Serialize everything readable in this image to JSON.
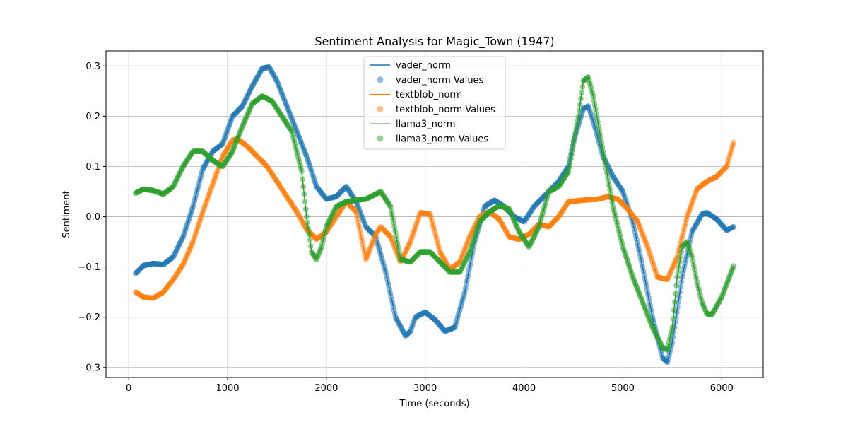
{
  "chart_data": {
    "type": "line",
    "title": "Sentiment Analysis for Magic_Town (1947)",
    "xlabel": "Time (seconds)",
    "ylabel": "Sentiment",
    "xlim": [
      -230,
      6420
    ],
    "ylim": [
      -0.32,
      0.33
    ],
    "xticks": [
      0,
      1000,
      2000,
      3000,
      4000,
      5000,
      6000
    ],
    "xtick_labels": [
      "0",
      "1000",
      "2000",
      "3000",
      "4000",
      "5000",
      "6000"
    ],
    "yticks": [
      -0.3,
      -0.2,
      -0.1,
      0.0,
      0.1,
      0.2,
      0.3
    ],
    "ytick_labels": [
      "−0.3",
      "−0.2",
      "−0.1",
      "0.0",
      "0.1",
      "0.2",
      "0.3"
    ],
    "grid": true,
    "legend_position": "top-center",
    "legend_entries": [
      {
        "label": "vader_norm",
        "kind": "line",
        "color": "#1f77b4"
      },
      {
        "label": "vader_norm Values",
        "kind": "marker",
        "color": "#1f77b4"
      },
      {
        "label": "textblob_norm",
        "kind": "line",
        "color": "#ff7f0e"
      },
      {
        "label": "textblob_norm Values",
        "kind": "marker",
        "color": "#ff7f0e"
      },
      {
        "label": "llama3_norm",
        "kind": "line",
        "color": "#2ca02c"
      },
      {
        "label": "llama3_norm Values",
        "kind": "marker",
        "color": "#2ca02c"
      }
    ],
    "series": [
      {
        "name": "vader_norm",
        "color": "#1f77b4",
        "points": [
          [
            70,
            -0.113
          ],
          [
            150,
            -0.097
          ],
          [
            250,
            -0.093
          ],
          [
            350,
            -0.095
          ],
          [
            450,
            -0.08
          ],
          [
            550,
            -0.04
          ],
          [
            650,
            0.02
          ],
          [
            750,
            0.095
          ],
          [
            850,
            0.13
          ],
          [
            950,
            0.145
          ],
          [
            1050,
            0.2
          ],
          [
            1150,
            0.22
          ],
          [
            1250,
            0.26
          ],
          [
            1350,
            0.295
          ],
          [
            1420,
            0.298
          ],
          [
            1500,
            0.27
          ],
          [
            1600,
            0.22
          ],
          [
            1700,
            0.17
          ],
          [
            1800,
            0.12
          ],
          [
            1900,
            0.06
          ],
          [
            2000,
            0.035
          ],
          [
            2100,
            0.04
          ],
          [
            2200,
            0.06
          ],
          [
            2300,
            0.03
          ],
          [
            2400,
            -0.02
          ],
          [
            2500,
            -0.04
          ],
          [
            2600,
            -0.11
          ],
          [
            2700,
            -0.2
          ],
          [
            2800,
            -0.237
          ],
          [
            2850,
            -0.228
          ],
          [
            2900,
            -0.2
          ],
          [
            3000,
            -0.19
          ],
          [
            3100,
            -0.205
          ],
          [
            3200,
            -0.228
          ],
          [
            3300,
            -0.22
          ],
          [
            3400,
            -0.15
          ],
          [
            3500,
            -0.05
          ],
          [
            3600,
            0.02
          ],
          [
            3700,
            0.033
          ],
          [
            3800,
            0.02
          ],
          [
            3900,
            0.0
          ],
          [
            4000,
            -0.01
          ],
          [
            4100,
            0.02
          ],
          [
            4200,
            0.04
          ],
          [
            4300,
            0.06
          ],
          [
            4350,
            0.07
          ],
          [
            4450,
            0.1
          ],
          [
            4500,
            0.15
          ],
          [
            4600,
            0.215
          ],
          [
            4650,
            0.22
          ],
          [
            4700,
            0.19
          ],
          [
            4800,
            0.12
          ],
          [
            4900,
            0.08
          ],
          [
            5000,
            0.05
          ],
          [
            5100,
            -0.01
          ],
          [
            5200,
            -0.1
          ],
          [
            5300,
            -0.2
          ],
          [
            5400,
            -0.28
          ],
          [
            5450,
            -0.29
          ],
          [
            5500,
            -0.25
          ],
          [
            5600,
            -0.12
          ],
          [
            5700,
            -0.03
          ],
          [
            5800,
            0.005
          ],
          [
            5850,
            0.008
          ],
          [
            5950,
            -0.005
          ],
          [
            6050,
            -0.027
          ],
          [
            6120,
            -0.02
          ]
        ]
      },
      {
        "name": "textblob_norm",
        "color": "#ff7f0e",
        "points": [
          [
            70,
            -0.15
          ],
          [
            150,
            -0.16
          ],
          [
            250,
            -0.162
          ],
          [
            350,
            -0.15
          ],
          [
            450,
            -0.125
          ],
          [
            550,
            -0.095
          ],
          [
            650,
            -0.05
          ],
          [
            750,
            0.01
          ],
          [
            850,
            0.065
          ],
          [
            950,
            0.12
          ],
          [
            1050,
            0.152
          ],
          [
            1100,
            0.155
          ],
          [
            1200,
            0.14
          ],
          [
            1300,
            0.12
          ],
          [
            1400,
            0.1
          ],
          [
            1500,
            0.07
          ],
          [
            1600,
            0.04
          ],
          [
            1700,
            0.01
          ],
          [
            1800,
            -0.025
          ],
          [
            1900,
            -0.045
          ],
          [
            2000,
            -0.03
          ],
          [
            2100,
            0.0
          ],
          [
            2200,
            0.03
          ],
          [
            2300,
            0.01
          ],
          [
            2400,
            -0.085
          ],
          [
            2500,
            -0.035
          ],
          [
            2550,
            -0.02
          ],
          [
            2650,
            -0.04
          ],
          [
            2750,
            -0.09
          ],
          [
            2850,
            -0.05
          ],
          [
            2950,
            0.008
          ],
          [
            3050,
            0.005
          ],
          [
            3150,
            -0.07
          ],
          [
            3250,
            -0.105
          ],
          [
            3350,
            -0.09
          ],
          [
            3450,
            -0.04
          ],
          [
            3550,
            0.0
          ],
          [
            3650,
            0.01
          ],
          [
            3750,
            -0.005
          ],
          [
            3850,
            -0.04
          ],
          [
            3950,
            -0.045
          ],
          [
            4050,
            -0.035
          ],
          [
            4150,
            -0.015
          ],
          [
            4250,
            -0.02
          ],
          [
            4350,
            0.0
          ],
          [
            4450,
            0.03
          ],
          [
            4600,
            0.033
          ],
          [
            4750,
            0.035
          ],
          [
            4850,
            0.04
          ],
          [
            4950,
            0.035
          ],
          [
            5050,
            0.015
          ],
          [
            5150,
            -0.01
          ],
          [
            5250,
            -0.06
          ],
          [
            5350,
            -0.12
          ],
          [
            5450,
            -0.125
          ],
          [
            5550,
            -0.08
          ],
          [
            5650,
            0.0
          ],
          [
            5750,
            0.055
          ],
          [
            5850,
            0.07
          ],
          [
            5950,
            0.08
          ],
          [
            6050,
            0.1
          ],
          [
            6120,
            0.148
          ]
        ]
      },
      {
        "name": "llama3_norm",
        "color": "#2ca02c",
        "points": [
          [
            70,
            0.047
          ],
          [
            150,
            0.055
          ],
          [
            250,
            0.052
          ],
          [
            350,
            0.045
          ],
          [
            450,
            0.06
          ],
          [
            550,
            0.1
          ],
          [
            650,
            0.13
          ],
          [
            750,
            0.13
          ],
          [
            850,
            0.112
          ],
          [
            950,
            0.1
          ],
          [
            1050,
            0.13
          ],
          [
            1150,
            0.18
          ],
          [
            1250,
            0.225
          ],
          [
            1350,
            0.24
          ],
          [
            1450,
            0.23
          ],
          [
            1550,
            0.2
          ],
          [
            1650,
            0.17
          ],
          [
            1750,
            0.09
          ],
          [
            1800,
            0.0
          ],
          [
            1850,
            -0.07
          ],
          [
            1900,
            -0.085
          ],
          [
            1950,
            -0.06
          ],
          [
            2000,
            -0.02
          ],
          [
            2100,
            0.02
          ],
          [
            2200,
            0.03
          ],
          [
            2300,
            0.033
          ],
          [
            2400,
            0.035
          ],
          [
            2500,
            0.045
          ],
          [
            2550,
            0.05
          ],
          [
            2650,
            0.02
          ],
          [
            2750,
            -0.085
          ],
          [
            2850,
            -0.09
          ],
          [
            2950,
            -0.07
          ],
          [
            3050,
            -0.07
          ],
          [
            3150,
            -0.09
          ],
          [
            3250,
            -0.11
          ],
          [
            3350,
            -0.11
          ],
          [
            3450,
            -0.07
          ],
          [
            3550,
            -0.01
          ],
          [
            3650,
            0.01
          ],
          [
            3750,
            0.022
          ],
          [
            3850,
            0.015
          ],
          [
            3950,
            -0.03
          ],
          [
            4050,
            -0.06
          ],
          [
            4150,
            -0.02
          ],
          [
            4250,
            0.05
          ],
          [
            4350,
            0.06
          ],
          [
            4450,
            0.09
          ],
          [
            4550,
            0.2
          ],
          [
            4600,
            0.27
          ],
          [
            4650,
            0.278
          ],
          [
            4700,
            0.24
          ],
          [
            4800,
            0.13
          ],
          [
            4900,
            0.02
          ],
          [
            5000,
            -0.06
          ],
          [
            5100,
            -0.12
          ],
          [
            5200,
            -0.17
          ],
          [
            5300,
            -0.22
          ],
          [
            5400,
            -0.26
          ],
          [
            5450,
            -0.265
          ],
          [
            5500,
            -0.22
          ],
          [
            5550,
            -0.12
          ],
          [
            5600,
            -0.06
          ],
          [
            5650,
            -0.05
          ],
          [
            5700,
            -0.08
          ],
          [
            5750,
            -0.13
          ],
          [
            5800,
            -0.17
          ],
          [
            5850,
            -0.193
          ],
          [
            5900,
            -0.195
          ],
          [
            6000,
            -0.16
          ],
          [
            6120,
            -0.098
          ]
        ]
      }
    ]
  }
}
